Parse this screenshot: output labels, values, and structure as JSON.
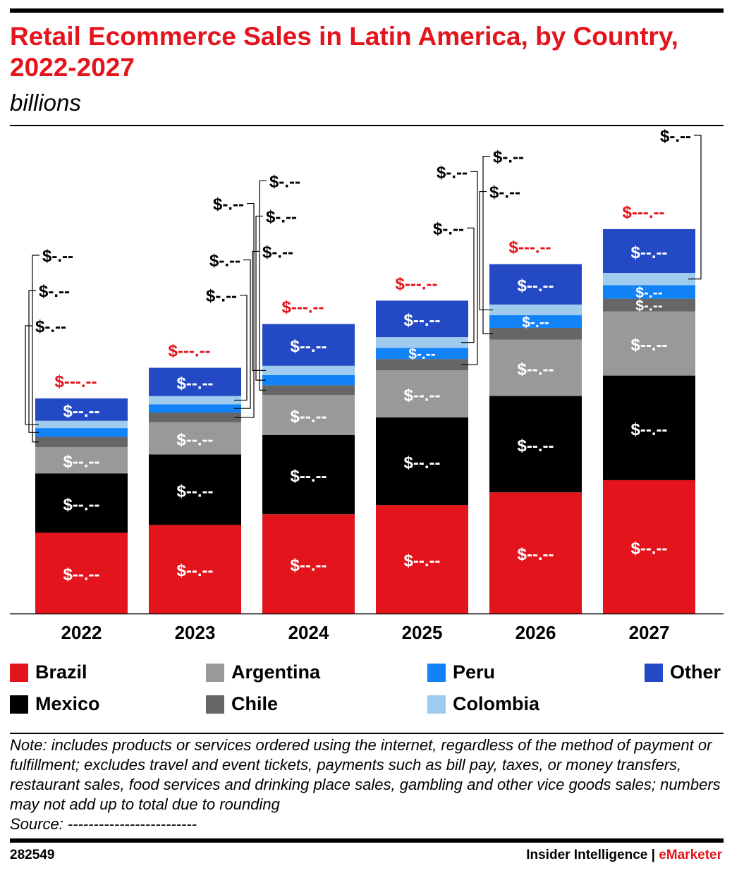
{
  "header": {
    "title": "Retail Ecommerce Sales in Latin America, by Country, 2022-2027",
    "subtitle": "billions"
  },
  "colors": {
    "accent": "#e3141c",
    "Brazil": "#e3141c",
    "Mexico": "#000000",
    "Argentina": "#999999",
    "Chile": "#666666",
    "Peru": "#1183f7",
    "Colombia": "#9fcbee",
    "Other": "#2349c4"
  },
  "chart_data": {
    "type": "bar",
    "stacked": true,
    "categories": [
      "2022",
      "2023",
      "2024",
      "2025",
      "2026",
      "2027"
    ],
    "series": [
      {
        "name": "Brazil",
        "values": [
          16.6,
          18.2,
          20.4,
          22.3,
          24.9,
          27.4
        ]
      },
      {
        "name": "Mexico",
        "values": [
          12.2,
          14.5,
          16.3,
          18.0,
          19.8,
          21.5
        ]
      },
      {
        "name": "Argentina",
        "values": [
          5.4,
          6.6,
          8.2,
          9.7,
          11.6,
          13.2
        ]
      },
      {
        "name": "Chile",
        "values": [
          2.1,
          2.0,
          2.0,
          2.3,
          2.4,
          2.6
        ]
      },
      {
        "name": "Peru",
        "values": [
          1.8,
          1.7,
          2.1,
          2.3,
          2.6,
          2.8
        ]
      },
      {
        "name": "Colombia",
        "values": [
          1.5,
          1.7,
          1.9,
          2.2,
          2.2,
          2.5
        ]
      },
      {
        "name": "Other",
        "values": [
          4.6,
          5.8,
          8.6,
          7.5,
          8.3,
          9.0
        ]
      }
    ],
    "segment_labels": [
      {
        "Brazil": "$--.--",
        "Mexico": "$--.--",
        "Argentina": "$--.--",
        "Chile": "$-.--",
        "Peru": "$-.--",
        "Colombia": "$-.--",
        "Other": "$--.--"
      },
      {
        "Brazil": "$--.--",
        "Mexico": "$--.--",
        "Argentina": "$--.--",
        "Chile": "$-.--",
        "Peru": "$-.--",
        "Colombia": "$-.--",
        "Other": "$--.--"
      },
      {
        "Brazil": "$--.--",
        "Mexico": "$--.--",
        "Argentina": "$--.--",
        "Chile": "$-.--",
        "Peru": "$-.--",
        "Colombia": "$-.--",
        "Other": "$--.--"
      },
      {
        "Brazil": "$--.--",
        "Mexico": "$--.--",
        "Argentina": "$--.--",
        "Chile": "$-.--",
        "Peru": "$-.--",
        "Colombia": "$-.--",
        "Other": "$--.--"
      },
      {
        "Brazil": "$--.--",
        "Mexico": "$--.--",
        "Argentina": "$--.--",
        "Chile": "$-.--",
        "Peru": "$-.--",
        "Colombia": "$-.--",
        "Other": "$--.--"
      },
      {
        "Brazil": "$--.--",
        "Mexico": "$--.--",
        "Argentina": "$--.--",
        "Chile": "$-.--",
        "Peru": "$-.--",
        "Colombia": "$-.--",
        "Other": "$--.--"
      }
    ],
    "inside_series": [
      "Brazil",
      "Mexico",
      "Argentina",
      "Other"
    ],
    "callout_series": [
      "Chile",
      "Peru",
      "Colombia"
    ],
    "inside_callouts": [
      {
        "category": "2025",
        "series": "Peru"
      },
      {
        "category": "2026",
        "series": "Peru"
      },
      {
        "category": "2027",
        "series": "Peru"
      },
      {
        "category": "2027",
        "series": "Chile"
      }
    ],
    "totals": [
      "$---.--",
      "$---.--",
      "$---.--",
      "$---.--",
      "$---.--",
      "$---.--"
    ],
    "ylim": [
      0,
      90
    ],
    "grid": false,
    "legend_position": "bottom"
  },
  "legend": [
    {
      "name": "Brazil",
      "label": "Brazil"
    },
    {
      "name": "Mexico",
      "label": "Mexico"
    },
    {
      "name": "Argentina",
      "label": "Argentina"
    },
    {
      "name": "Chile",
      "label": "Chile"
    },
    {
      "name": "Peru",
      "label": "Peru"
    },
    {
      "name": "Colombia",
      "label": "Colombia"
    },
    {
      "name": "Other",
      "label": "Other"
    }
  ],
  "footer": {
    "note": "Note: includes products or services ordered using the internet, regardless of the method of payment or fulfillment; excludes travel and event tickets, payments such as bill pay, taxes, or money transfers, restaurant sales, food services and drinking place sales, gambling and other vice goods sales; numbers may not add up to total due to rounding",
    "source": "Source: -------------------------",
    "chart_id": "282549",
    "brand_left": "Insider Intelligence",
    "brand_sep": " | ",
    "brand_right": "eMarketer"
  }
}
